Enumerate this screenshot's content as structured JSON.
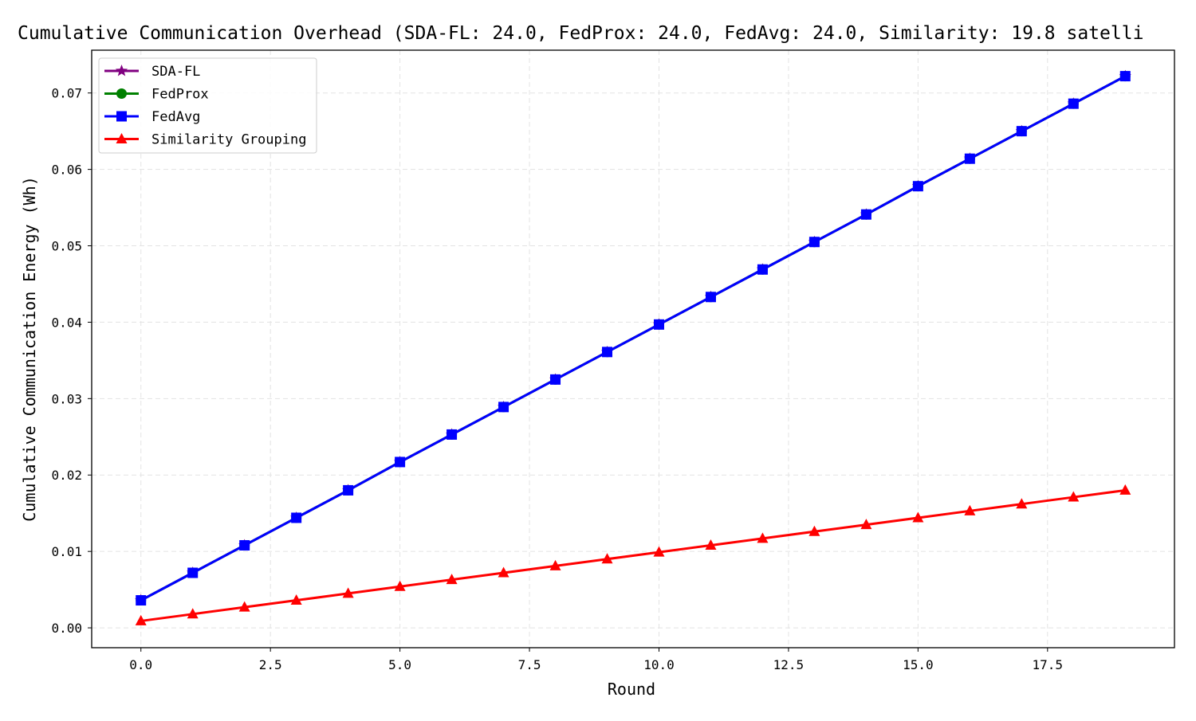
{
  "chart_data": {
    "type": "line",
    "title": "Cumulative Communication Overhead (SDA-FL: 24.0, FedProx: 24.0, FedAvg: 24.0, Similarity: 19.8 satelli",
    "xlabel": "Round",
    "ylabel": "Cumulative Communication Energy (Wh)",
    "xlim": [
      -0.95,
      19.95
    ],
    "ylim": [
      -0.0026,
      0.0756
    ],
    "x_ticks": [
      0.0,
      2.5,
      5.0,
      7.5,
      10.0,
      12.5,
      15.0,
      17.5
    ],
    "x_tick_labels": [
      "0.0",
      "2.5",
      "5.0",
      "7.5",
      "10.0",
      "12.5",
      "15.0",
      "17.5"
    ],
    "y_ticks": [
      0.0,
      0.01,
      0.02,
      0.03,
      0.04,
      0.05,
      0.06,
      0.07
    ],
    "y_tick_labels": [
      "0.00",
      "0.01",
      "0.02",
      "0.03",
      "0.04",
      "0.05",
      "0.06",
      "0.07"
    ],
    "grid": true,
    "legend_position": "top-left",
    "x": [
      0,
      1,
      2,
      3,
      4,
      5,
      6,
      7,
      8,
      9,
      10,
      11,
      12,
      13,
      14,
      15,
      16,
      17,
      18,
      19
    ],
    "series": [
      {
        "name": "SDA-FL",
        "color": "#800080",
        "marker": "star",
        "values": [
          0.0036,
          0.0072,
          0.0108,
          0.0144,
          0.018,
          0.0217,
          0.0253,
          0.0289,
          0.0325,
          0.0361,
          0.0397,
          0.0433,
          0.0469,
          0.0505,
          0.0541,
          0.0578,
          0.0614,
          0.065,
          0.0686,
          0.0722
        ]
      },
      {
        "name": "FedProx",
        "color": "#008000",
        "marker": "circle",
        "values": [
          0.0036,
          0.0072,
          0.0108,
          0.0144,
          0.018,
          0.0217,
          0.0253,
          0.0289,
          0.0325,
          0.0361,
          0.0397,
          0.0433,
          0.0469,
          0.0505,
          0.0541,
          0.0578,
          0.0614,
          0.065,
          0.0686,
          0.0722
        ]
      },
      {
        "name": "FedAvg",
        "color": "#0000ff",
        "marker": "square",
        "values": [
          0.0036,
          0.0072,
          0.0108,
          0.0144,
          0.018,
          0.0217,
          0.0253,
          0.0289,
          0.0325,
          0.0361,
          0.0397,
          0.0433,
          0.0469,
          0.0505,
          0.0541,
          0.0578,
          0.0614,
          0.065,
          0.0686,
          0.0722
        ]
      },
      {
        "name": "Similarity Grouping",
        "color": "#ff0000",
        "marker": "triangle",
        "values": [
          0.0009,
          0.0018,
          0.0027,
          0.0036,
          0.0045,
          0.0054,
          0.0063,
          0.0072,
          0.0081,
          0.009,
          0.0099,
          0.0108,
          0.0117,
          0.0126,
          0.0135,
          0.0144,
          0.0153,
          0.0162,
          0.0171,
          0.018
        ]
      }
    ]
  }
}
